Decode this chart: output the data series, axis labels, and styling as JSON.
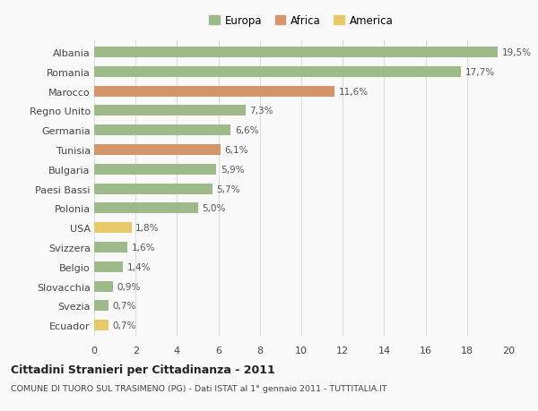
{
  "categories": [
    "Albania",
    "Romania",
    "Marocco",
    "Regno Unito",
    "Germania",
    "Tunisia",
    "Bulgaria",
    "Paesi Bassi",
    "Polonia",
    "USA",
    "Svizzera",
    "Belgio",
    "Slovacchia",
    "Svezia",
    "Ecuador"
  ],
  "values": [
    19.5,
    17.7,
    11.6,
    7.3,
    6.6,
    6.1,
    5.9,
    5.7,
    5.0,
    1.8,
    1.6,
    1.4,
    0.9,
    0.7,
    0.7
  ],
  "labels": [
    "19,5%",
    "17,7%",
    "11,6%",
    "7,3%",
    "6,6%",
    "6,1%",
    "5,9%",
    "5,7%",
    "5,0%",
    "1,8%",
    "1,6%",
    "1,4%",
    "0,9%",
    "0,7%",
    "0,7%"
  ],
  "continents": [
    "Europa",
    "Europa",
    "Africa",
    "Europa",
    "Europa",
    "Africa",
    "Europa",
    "Europa",
    "Europa",
    "America",
    "Europa",
    "Europa",
    "Europa",
    "Europa",
    "America"
  ],
  "colors": {
    "Europa": "#9eba8a",
    "Africa": "#d4956a",
    "America": "#e8c96a"
  },
  "legend_entries": [
    "Europa",
    "Africa",
    "America"
  ],
  "xlim": [
    0,
    20
  ],
  "xticks": [
    0,
    2,
    4,
    6,
    8,
    10,
    12,
    14,
    16,
    18,
    20
  ],
  "title": "Cittadini Stranieri per Cittadinanza - 2011",
  "subtitle": "COMUNE DI TUORO SUL TRASIMENO (PG) - Dati ISTAT al 1° gennaio 2011 - TUTTITALIA.IT",
  "bg_color": "#f9f9f9",
  "grid_color": "#dddddd",
  "bar_height": 0.55
}
